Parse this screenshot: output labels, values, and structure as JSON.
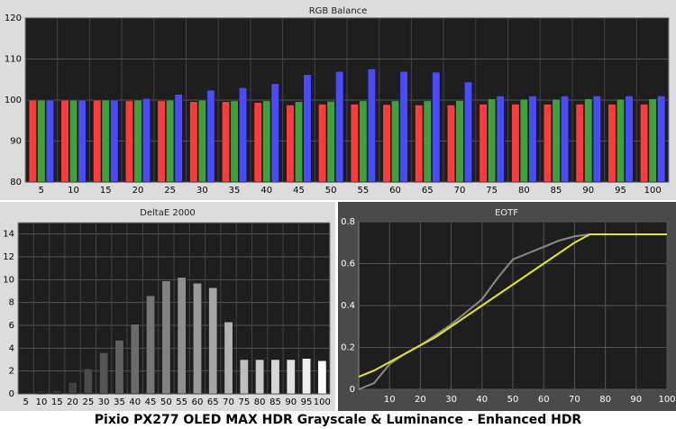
{
  "title": "Pixio PX277 OLED MAX HDR Grayscale & Luminance - Enhanced HDR",
  "chart_data": [
    {
      "type": "bar",
      "title": "RGB Balance",
      "categories": [
        "5",
        "10",
        "15",
        "20",
        "25",
        "30",
        "35",
        "40",
        "45",
        "50",
        "55",
        "60",
        "65",
        "70",
        "75",
        "80",
        "85",
        "90",
        "95",
        "100"
      ],
      "series": [
        {
          "color": "#ff3b3b",
          "values": [
            100,
            100,
            100,
            99.8,
            99.8,
            99.6,
            99.6,
            99.4,
            98.8,
            99,
            99,
            98.9,
            98.8,
            98.8,
            99,
            99,
            99,
            99,
            99,
            99
          ]
        },
        {
          "color": "#3aa33a",
          "values": [
            100,
            100,
            100,
            100,
            100,
            100,
            99.8,
            99.8,
            99.6,
            99.7,
            99.8,
            99.8,
            99.8,
            99.9,
            100.3,
            100.2,
            100.2,
            100.3,
            100.2,
            100.3
          ]
        },
        {
          "color": "#4a4aff",
          "values": [
            100,
            100,
            100,
            100.4,
            101.4,
            102.4,
            103,
            104,
            106.2,
            107,
            107.6,
            107,
            106.8,
            104.4,
            101,
            101,
            101,
            101,
            101,
            101
          ]
        }
      ],
      "ylim": [
        80,
        120
      ],
      "yticks": [
        80,
        90,
        100,
        110,
        120
      ],
      "grid": true
    },
    {
      "type": "bar",
      "title": "DeltaE 2000",
      "categories": [
        "5",
        "10",
        "15",
        "20",
        "25",
        "30",
        "35",
        "40",
        "45",
        "50",
        "55",
        "60",
        "65",
        "70",
        "75",
        "80",
        "85",
        "90",
        "95",
        "100"
      ],
      "series": [
        {
          "colors": [
            "#222222",
            "#2c2c2c",
            "#363636",
            "#404040",
            "#4a4a4a",
            "#555555",
            "#606060",
            "#6b6b6b",
            "#767676",
            "#828282",
            "#8e8e8e",
            "#9a9a9a",
            "#a6a6a6",
            "#b2b2b2",
            "#bebebe",
            "#cacaca",
            "#d6d6d6",
            "#e2e2e2",
            "#eeeeee",
            "#fafafa"
          ],
          "values": [
            0,
            0.3,
            0.3,
            1.0,
            2.2,
            3.6,
            4.7,
            6.1,
            8.6,
            9.9,
            10.2,
            9.7,
            9.3,
            6.3,
            3.0,
            3.0,
            3.0,
            3.0,
            3.1,
            2.9
          ]
        }
      ],
      "ylim": [
        0,
        15
      ],
      "yticks": [
        0,
        2,
        4,
        6,
        8,
        10,
        12,
        14
      ],
      "grid": true
    },
    {
      "type": "line",
      "title": "EOTF",
      "x": [
        0,
        5,
        10,
        15,
        20,
        25,
        30,
        35,
        40,
        45,
        50,
        55,
        60,
        65,
        70,
        75,
        80,
        85,
        90,
        95,
        100
      ],
      "series": [
        {
          "color": "#8a8a8a",
          "values": [
            0,
            0.03,
            0.12,
            0.17,
            0.21,
            0.26,
            0.31,
            0.37,
            0.43,
            0.53,
            0.62,
            0.65,
            0.68,
            0.71,
            0.73,
            0.74,
            0.74,
            0.74,
            0.74,
            0.74,
            0.74
          ]
        },
        {
          "color": "#e6e620",
          "values": [
            0.06,
            0.09,
            0.13,
            0.17,
            0.21,
            0.25,
            0.3,
            0.35,
            0.4,
            0.45,
            0.5,
            0.55,
            0.6,
            0.65,
            0.7,
            0.74,
            0.74,
            0.74,
            0.74,
            0.74,
            0.74
          ]
        }
      ],
      "xlim": [
        0,
        100
      ],
      "xticks": [
        10,
        20,
        30,
        40,
        50,
        60,
        70,
        80,
        90,
        100
      ],
      "ylim": [
        0,
        0.8
      ],
      "yticks": [
        0,
        0.2,
        0.4,
        0.6,
        0.8
      ],
      "grid": true
    }
  ]
}
